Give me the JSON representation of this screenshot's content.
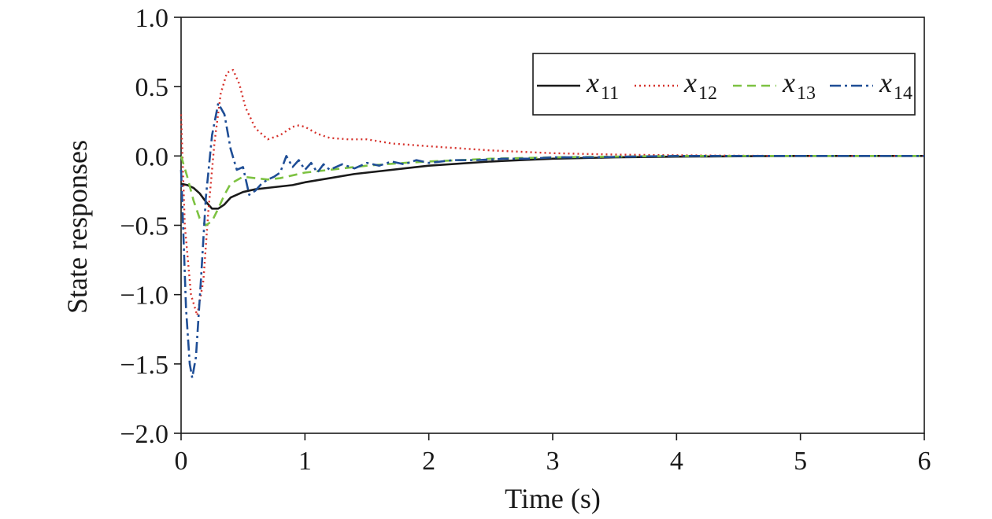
{
  "chart_data": {
    "type": "line",
    "title": "",
    "xlabel": "Time (s)",
    "ylabel": "State responses",
    "xlim": [
      0,
      6
    ],
    "ylim": [
      -2.0,
      1.0
    ],
    "xticks": [
      "0",
      "1",
      "2",
      "3",
      "4",
      "5",
      "6"
    ],
    "yticks": [
      "1.0",
      "0.5",
      "0.0",
      "−0.5",
      "−1.0",
      "−1.5",
      "−2.0"
    ],
    "grid": false,
    "legend_position": "top-right",
    "series": [
      {
        "name": "x11",
        "label_main": "x",
        "label_sub": "11",
        "color": "#1a1a1a",
        "dash": "solid",
        "x": [
          0,
          0.05,
          0.1,
          0.15,
          0.2,
          0.25,
          0.3,
          0.35,
          0.4,
          0.5,
          0.6,
          0.7,
          0.8,
          0.9,
          1.0,
          1.2,
          1.4,
          1.6,
          1.8,
          2.0,
          2.5,
          3.0,
          3.5,
          4.0,
          4.5,
          5.0,
          6.0
        ],
        "y": [
          -0.2,
          -0.21,
          -0.23,
          -0.27,
          -0.33,
          -0.38,
          -0.38,
          -0.35,
          -0.3,
          -0.26,
          -0.24,
          -0.23,
          -0.22,
          -0.21,
          -0.19,
          -0.16,
          -0.13,
          -0.11,
          -0.09,
          -0.07,
          -0.04,
          -0.02,
          -0.01,
          -0.005,
          -0.002,
          0,
          0
        ]
      },
      {
        "name": "x12",
        "label_main": "x",
        "label_sub": "12",
        "color": "#d6322c",
        "dash": "dotted",
        "x": [
          0,
          0.03,
          0.08,
          0.13,
          0.18,
          0.22,
          0.27,
          0.32,
          0.37,
          0.42,
          0.47,
          0.52,
          0.6,
          0.7,
          0.8,
          0.9,
          0.95,
          1.0,
          1.1,
          1.2,
          1.35,
          1.5,
          1.7,
          2.0,
          2.5,
          3.0,
          3.5,
          4.0,
          4.5,
          5.0,
          6.0
        ],
        "y": [
          0.3,
          -0.5,
          -1.0,
          -1.15,
          -0.9,
          -0.4,
          0.1,
          0.45,
          0.6,
          0.62,
          0.52,
          0.35,
          0.2,
          0.12,
          0.15,
          0.21,
          0.22,
          0.21,
          0.16,
          0.13,
          0.12,
          0.12,
          0.09,
          0.07,
          0.04,
          0.02,
          0.01,
          0.005,
          0.002,
          0,
          0
        ]
      },
      {
        "name": "x13",
        "label_main": "x",
        "label_sub": "13",
        "color": "#7dc242",
        "dash": "dashed",
        "x": [
          0,
          0.05,
          0.1,
          0.15,
          0.2,
          0.25,
          0.3,
          0.35,
          0.4,
          0.5,
          0.6,
          0.7,
          0.8,
          1.0,
          1.2,
          1.5,
          1.8,
          2.0,
          2.5,
          3.0,
          3.5,
          4.0,
          5.0,
          6.0
        ],
        "y": [
          0.0,
          -0.15,
          -0.32,
          -0.45,
          -0.5,
          -0.47,
          -0.38,
          -0.28,
          -0.2,
          -0.15,
          -0.16,
          -0.17,
          -0.16,
          -0.12,
          -0.1,
          -0.07,
          -0.05,
          -0.04,
          -0.02,
          -0.01,
          -0.005,
          0,
          0,
          0
        ]
      },
      {
        "name": "x14",
        "label_main": "x",
        "label_sub": "14",
        "color": "#1f4e96",
        "dash": "dashdot",
        "x": [
          0,
          0.04,
          0.07,
          0.09,
          0.12,
          0.16,
          0.2,
          0.25,
          0.3,
          0.35,
          0.4,
          0.45,
          0.5,
          0.55,
          0.6,
          0.65,
          0.7,
          0.75,
          0.8,
          0.85,
          0.9,
          0.95,
          1.0,
          1.05,
          1.1,
          1.15,
          1.2,
          1.3,
          1.4,
          1.5,
          1.6,
          1.7,
          1.8,
          1.9,
          2.0,
          2.2,
          2.4,
          2.6,
          2.8,
          3.0,
          3.3,
          3.6,
          4.0,
          4.5,
          5.0,
          5.5,
          6.0
        ],
        "y": [
          -0.1,
          -1.1,
          -1.5,
          -1.6,
          -1.45,
          -0.9,
          -0.3,
          0.15,
          0.38,
          0.3,
          0.05,
          -0.1,
          -0.08,
          -0.28,
          -0.25,
          -0.2,
          -0.17,
          -0.15,
          -0.12,
          0.0,
          -0.08,
          -0.03,
          -0.1,
          -0.05,
          -0.12,
          -0.06,
          -0.1,
          -0.06,
          -0.09,
          -0.05,
          -0.07,
          -0.04,
          -0.06,
          -0.03,
          -0.05,
          -0.03,
          -0.03,
          -0.02,
          -0.02,
          -0.01,
          -0.01,
          -0.005,
          0,
          0,
          0,
          0,
          0
        ]
      }
    ]
  }
}
